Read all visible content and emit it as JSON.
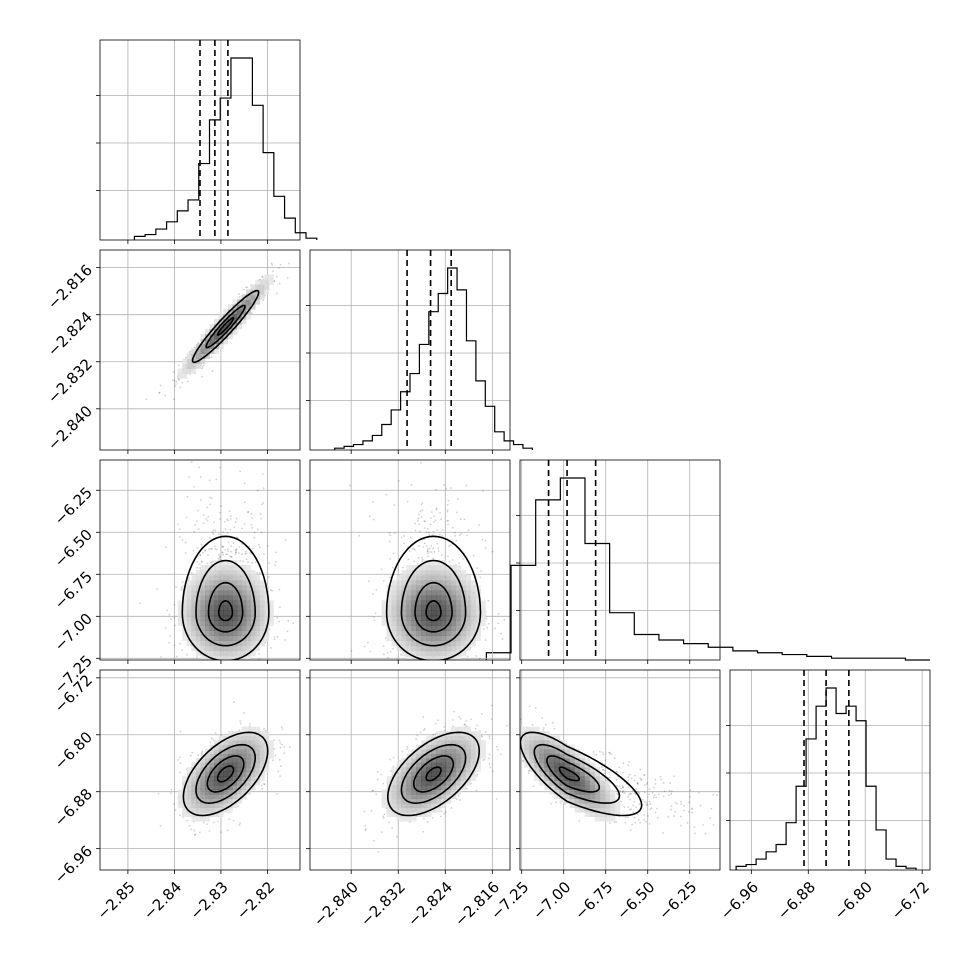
{
  "chart_data": {
    "type": "corner",
    "title": "",
    "grid": true,
    "params": [
      {
        "range": [
          -2.856,
          -2.813
        ],
        "mean": -2.829,
        "sd": 0.0049,
        "ticks": [
          -2.85,
          -2.84,
          -2.83,
          -2.82
        ],
        "tick_labels": [
          "−2.85",
          "−2.84",
          "−2.83",
          "−2.82"
        ],
        "quantiles": [
          -2.8345,
          -2.8313,
          -2.8285
        ],
        "hist": [
          2,
          3,
          6,
          10,
          16,
          22,
          42,
          66,
          78,
          100,
          100,
          74,
          48,
          24,
          12,
          4,
          1
        ]
      },
      {
        "range": [
          -2.847,
          -2.813
        ],
        "mean": -2.826,
        "sd": 0.0042,
        "ticks": [
          -2.84,
          -2.832,
          -2.824,
          -2.816
        ],
        "tick_labels": [
          "−2.840",
          "−2.832",
          "−2.824",
          "−2.816"
        ],
        "quantiles": [
          -2.8305,
          -2.8265,
          -2.823
        ],
        "hist": [
          1,
          2,
          3,
          5,
          8,
          14,
          22,
          32,
          42,
          58,
          76,
          86,
          100,
          88,
          60,
          38,
          24,
          10,
          5,
          3,
          1
        ]
      },
      {
        "range": [
          -7.26,
          -6.07
        ],
        "mean": -6.98,
        "sd": 0.15,
        "ticks": [
          -7.25,
          -7.0,
          -6.75,
          -6.5,
          -6.25
        ],
        "tick_labels": [
          "−7.25",
          "−7.00",
          "−6.75",
          "−6.50",
          "−6.25"
        ],
        "quantiles": [
          -7.09,
          -6.98,
          -6.81
        ],
        "hist": [
          4,
          52,
          88,
          100,
          64,
          26,
          14,
          11,
          9,
          7,
          5,
          4,
          3,
          2,
          1,
          1,
          1,
          0
        ]
      },
      {
        "range": [
          -6.99,
          -6.709
        ],
        "mean": -6.855,
        "sd": 0.0316,
        "ticks": [
          -6.96,
          -6.88,
          -6.8,
          -6.72
        ],
        "tick_labels": [
          "−6.96",
          "−6.88",
          "−6.80",
          "−6.72"
        ],
        "quantiles": [
          -6.886,
          -6.855,
          -6.823
        ],
        "hist": [
          2,
          3,
          6,
          10,
          14,
          26,
          46,
          72,
          90,
          100,
          86,
          90,
          82,
          46,
          22,
          6,
          2,
          1
        ]
      }
    ],
    "pairs": [
      {
        "x": 0,
        "y": 1,
        "rho": 0.95,
        "contours": [
          0.35,
          0.85,
          1.45
        ]
      },
      {
        "x": 0,
        "y": 2,
        "rho": 0.0,
        "contours": [
          0.3,
          0.75,
          1.3,
          1.9
        ]
      },
      {
        "x": 1,
        "y": 2,
        "rho": 0.0,
        "contours": [
          0.3,
          0.75,
          1.3,
          1.9
        ]
      },
      {
        "x": 0,
        "y": 3,
        "rho": 0.55,
        "contours": [
          0.35,
          0.8,
          1.3,
          1.85
        ]
      },
      {
        "x": 1,
        "y": 3,
        "rho": 0.55,
        "contours": [
          0.3,
          0.8,
          1.3,
          1.85
        ]
      },
      {
        "x": 2,
        "y": 3,
        "rho": -0.75,
        "contours": [
          0.3,
          0.8,
          1.3,
          1.85
        ]
      }
    ]
  }
}
